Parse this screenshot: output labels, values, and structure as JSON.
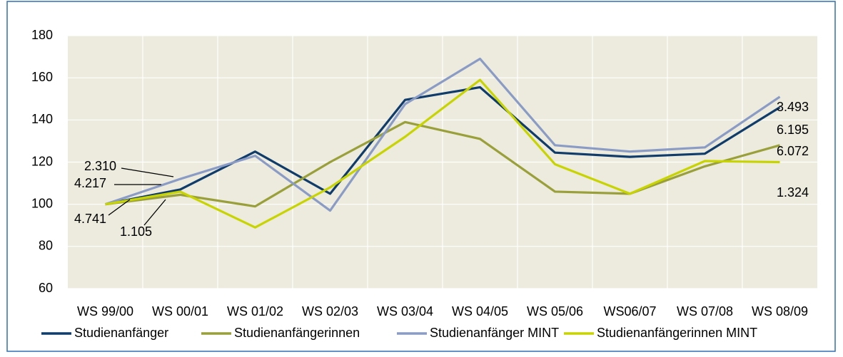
{
  "chart_data": {
    "type": "line",
    "categories": [
      "WS 99/00",
      "WS 00/01",
      "WS 01/02",
      "WS 02/03",
      "WS 03/04",
      "WS 04/05",
      "WS 05/06",
      "WS06/07",
      "WS 07/08",
      "WS 08/09"
    ],
    "series": [
      {
        "name": "Studienanfänger",
        "color": "#0f3c6b",
        "values": [
          100,
          107,
          125,
          105,
          149.5,
          155.5,
          124.5,
          122.5,
          124,
          146
        ]
      },
      {
        "name": "Studienanfängerinnen",
        "color": "#99a03a",
        "values": [
          100,
          104.5,
          99,
          120,
          139,
          131,
          106,
          105,
          118,
          128
        ]
      },
      {
        "name": "Studienanfänger MINT",
        "color": "#8a9cc6",
        "values": [
          100,
          112,
          123,
          97,
          147.5,
          169,
          128,
          125,
          127,
          151
        ]
      },
      {
        "name": "Studienanfängerinnen MINT",
        "color": "#c8d400",
        "values": [
          100,
          106,
          89,
          108,
          132,
          159,
          119,
          105,
          120.5,
          120
        ]
      }
    ],
    "annotations": [
      "2.310",
      "4.217",
      "4.741",
      "1.105",
      "3.493",
      "6.195",
      "6.072",
      "1.324"
    ],
    "ylim": [
      60,
      180
    ],
    "yticks": [
      60,
      80,
      100,
      120,
      140,
      160,
      180
    ],
    "grid": true,
    "legend": "bottom"
  }
}
